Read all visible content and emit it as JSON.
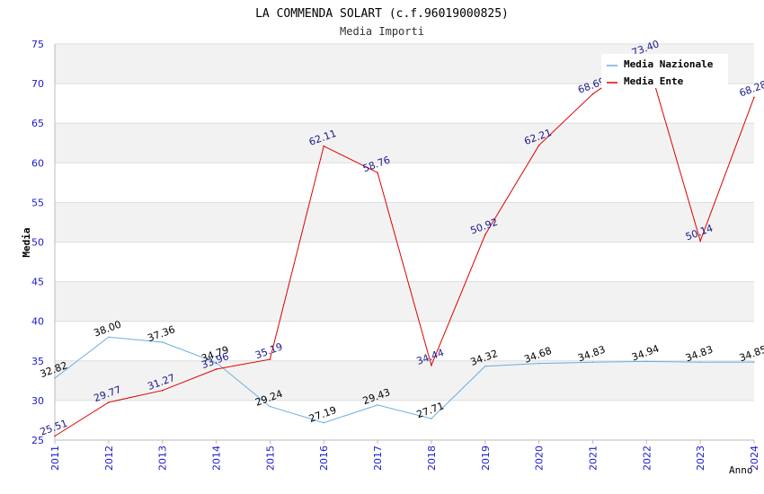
{
  "chart_data": {
    "type": "line",
    "title": "LA COMMENDA SOLART (c.f.96019000825)",
    "subtitle": "Media Importi",
    "xlabel": "Anno",
    "ylabel": "Media",
    "categories": [
      "2011",
      "2012",
      "2013",
      "2014",
      "2015",
      "2016",
      "2017",
      "2018",
      "2019",
      "2020",
      "2021",
      "2022",
      "2023",
      "2024"
    ],
    "ylim": [
      25,
      75
    ],
    "yticks": [
      25,
      30,
      35,
      40,
      45,
      50,
      55,
      60,
      65,
      70,
      75
    ],
    "grid": "horizontal bands",
    "legend_position": "top-right",
    "series": [
      {
        "name": "Media Nazionale",
        "color": "#6aaee0",
        "label_color": "#000000",
        "values": [
          32.82,
          38.0,
          37.36,
          34.79,
          29.24,
          27.19,
          29.43,
          27.71,
          34.32,
          34.68,
          34.83,
          34.94,
          34.83,
          34.85
        ],
        "labels": [
          "32.82",
          "38.00",
          "37.36",
          "34.79",
          "29.24",
          "27.19",
          "29.43",
          "27.71",
          "34.32",
          "34.68",
          "34.83",
          "34.94",
          "34.83",
          "34.85"
        ]
      },
      {
        "name": "Media Ente",
        "color": "#e00000",
        "label_color": "#1a1a8c",
        "values": [
          25.51,
          29.77,
          31.27,
          33.96,
          35.19,
          62.11,
          58.76,
          34.44,
          50.92,
          62.21,
          68.69,
          73.4,
          50.14,
          68.28
        ],
        "labels": [
          "25.51",
          "29.77",
          "31.27",
          "33.96",
          "35.19",
          "62.11",
          "58.76",
          "34.44",
          "50.92",
          "62.21",
          "68.69",
          "73.40",
          "50.14",
          "68.28"
        ]
      }
    ]
  }
}
